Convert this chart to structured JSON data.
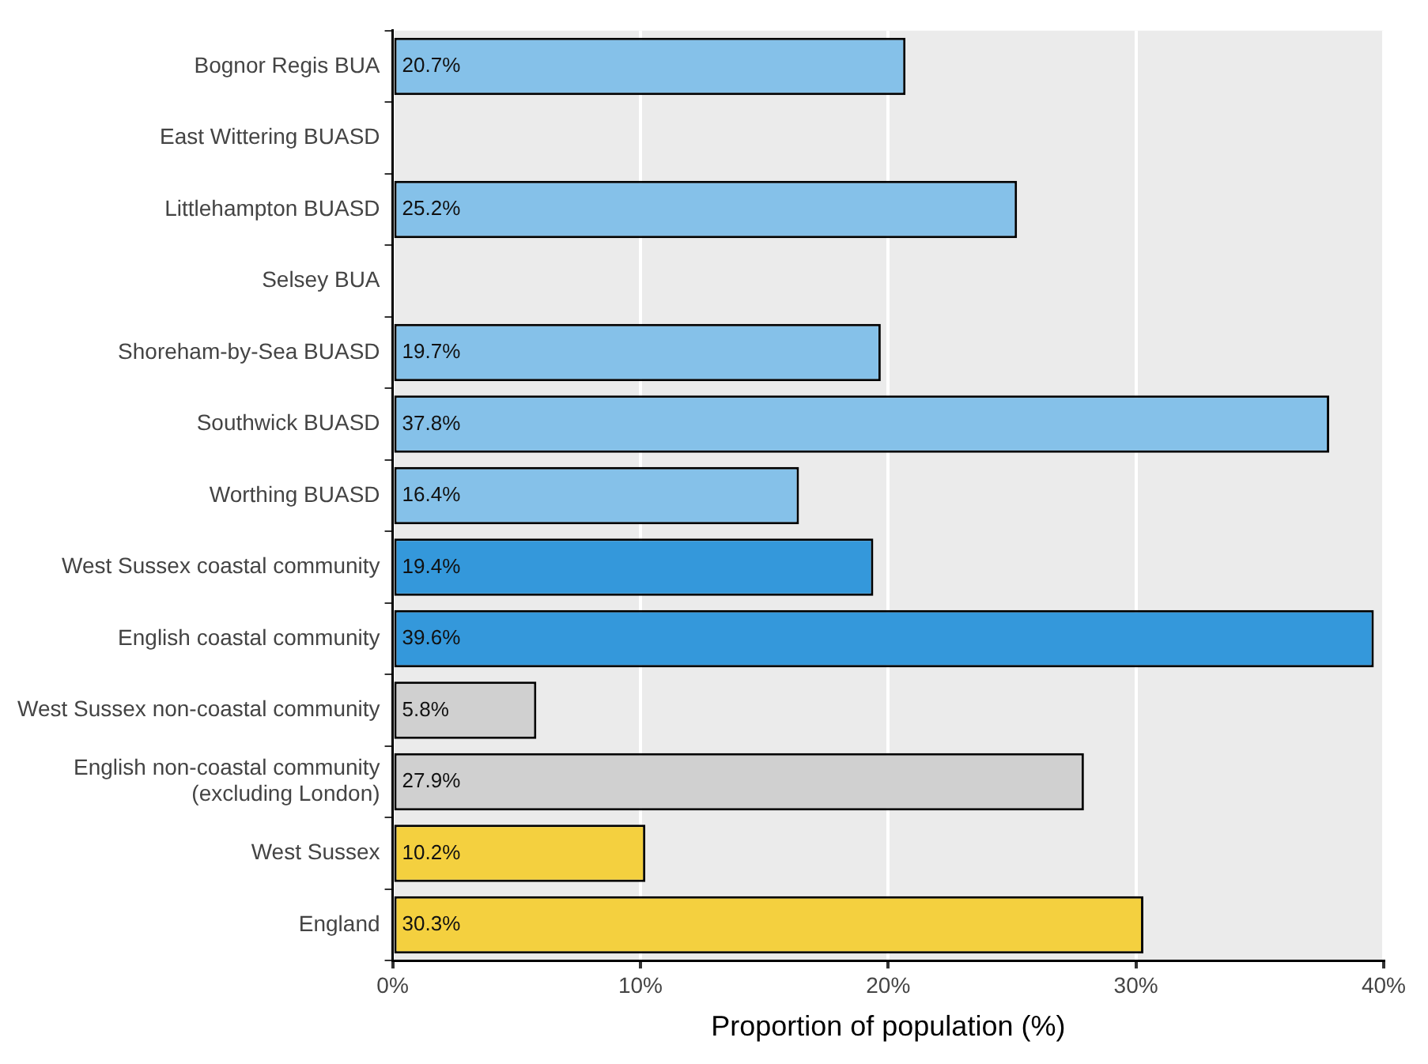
{
  "chart_data": {
    "type": "bar",
    "orientation": "horizontal",
    "xlabel": "Proportion of population (%)",
    "categories": [
      "Bognor Regis BUA",
      "East Wittering BUASD",
      "Littlehampton BUASD",
      "Selsey BUA",
      "Shoreham-by-Sea BUASD",
      "Southwick BUASD",
      "Worthing BUASD",
      "West Sussex coastal community",
      "English coastal community",
      "West Sussex non-coastal community",
      "English non-coastal community (excluding London)",
      "West Sussex",
      "England"
    ],
    "values": [
      20.7,
      null,
      25.2,
      null,
      19.7,
      37.8,
      16.4,
      19.4,
      39.6,
      5.8,
      27.9,
      10.2,
      30.3
    ],
    "value_labels": [
      "20.7%",
      null,
      "25.2%",
      null,
      "19.7%",
      "37.8%",
      "16.4%",
      "19.4%",
      "39.6%",
      "5.8%",
      "27.9%",
      "10.2%",
      "30.3%"
    ],
    "colors": [
      "#85c1e9",
      "#85c1e9",
      "#85c1e9",
      "#85c1e9",
      "#85c1e9",
      "#85c1e9",
      "#85c1e9",
      "#3498db",
      "#3498db",
      "#d0d0d0",
      "#d0d0d0",
      "#f4d03f",
      "#f4d03f"
    ],
    "xlim": [
      0,
      40
    ],
    "xticks": [
      {
        "value": 0,
        "label": "0%"
      },
      {
        "value": 10,
        "label": "10%"
      },
      {
        "value": 20,
        "label": "20%"
      },
      {
        "value": 30,
        "label": "30%"
      },
      {
        "value": 40,
        "label": "40%"
      }
    ],
    "grid": "x",
    "legend": false
  }
}
